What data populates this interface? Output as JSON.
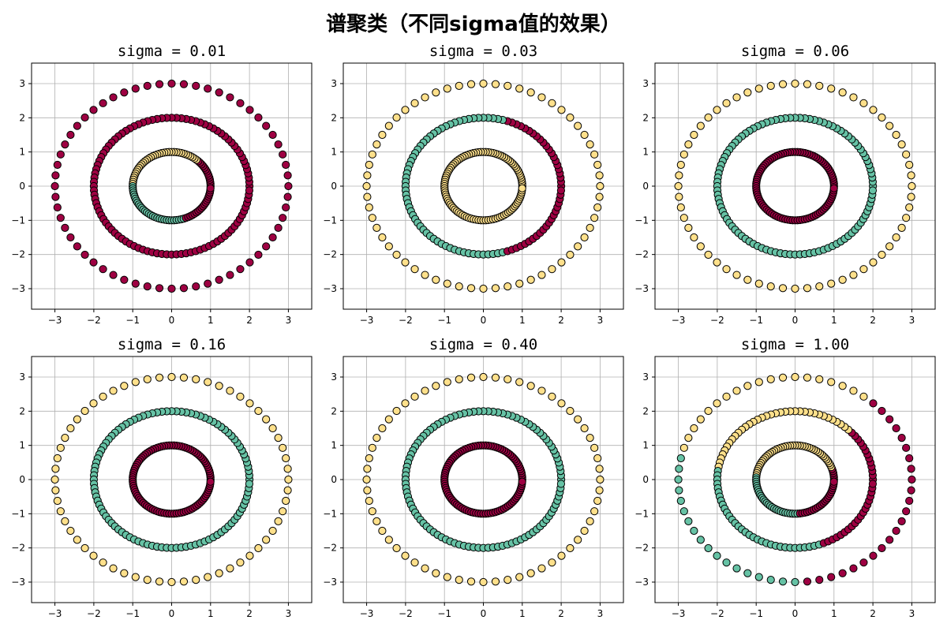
{
  "figure": {
    "suptitle": "谱聚类（不同sigma值的效果）"
  },
  "colors": {
    "cluster_a": "#9e0142",
    "cluster_b": "#66c2a5",
    "cluster_c": "#fee08b",
    "edge": "#000000",
    "grid": "#b0b0b0"
  },
  "chart_data": [
    {
      "type": "scatter",
      "title": "sigma = 0.01",
      "xlim": [
        -3.6,
        3.6
      ],
      "ylim": [
        -3.6,
        3.6
      ],
      "xticks": [
        -3,
        -2,
        -1,
        0,
        1,
        2,
        3
      ],
      "yticks": [
        -3,
        -2,
        -1,
        0,
        1,
        2,
        3
      ],
      "grid": true,
      "rings": [
        {
          "radius": 1,
          "points": 100,
          "segments": [
            {
              "from_deg": 0,
              "to_deg": 50,
              "cluster": "cluster_a"
            },
            {
              "from_deg": 50,
              "to_deg": 180,
              "cluster": "cluster_c"
            },
            {
              "from_deg": 180,
              "to_deg": 290,
              "cluster": "cluster_b"
            },
            {
              "from_deg": 290,
              "to_deg": 360,
              "cluster": "cluster_a"
            }
          ]
        },
        {
          "radius": 2,
          "points": 100,
          "segments": [
            {
              "from_deg": 0,
              "to_deg": 360,
              "cluster": "cluster_a"
            }
          ]
        },
        {
          "radius": 3,
          "points": 60,
          "segments": [
            {
              "from_deg": 0,
              "to_deg": 360,
              "cluster": "cluster_a"
            }
          ]
        }
      ]
    },
    {
      "type": "scatter",
      "title": "sigma = 0.03",
      "xlim": [
        -3.6,
        3.6
      ],
      "ylim": [
        -3.6,
        3.6
      ],
      "xticks": [
        -3,
        -2,
        -1,
        0,
        1,
        2,
        3
      ],
      "yticks": [
        -3,
        -2,
        -1,
        0,
        1,
        2,
        3
      ],
      "grid": true,
      "rings": [
        {
          "radius": 1,
          "points": 100,
          "segments": [
            {
              "from_deg": 0,
              "to_deg": 360,
              "cluster": "cluster_c"
            }
          ]
        },
        {
          "radius": 2,
          "points": 100,
          "segments": [
            {
              "from_deg": 0,
              "to_deg": 75,
              "cluster": "cluster_a"
            },
            {
              "from_deg": 75,
              "to_deg": 285,
              "cluster": "cluster_b"
            },
            {
              "from_deg": 285,
              "to_deg": 360,
              "cluster": "cluster_a"
            }
          ]
        },
        {
          "radius": 3,
          "points": 60,
          "segments": [
            {
              "from_deg": 0,
              "to_deg": 360,
              "cluster": "cluster_c"
            }
          ]
        }
      ]
    },
    {
      "type": "scatter",
      "title": "sigma = 0.06",
      "xlim": [
        -3.6,
        3.6
      ],
      "ylim": [
        -3.6,
        3.6
      ],
      "xticks": [
        -3,
        -2,
        -1,
        0,
        1,
        2,
        3
      ],
      "yticks": [
        -3,
        -2,
        -1,
        0,
        1,
        2,
        3
      ],
      "grid": true,
      "rings": [
        {
          "radius": 1,
          "points": 100,
          "segments": [
            {
              "from_deg": 0,
              "to_deg": 360,
              "cluster": "cluster_a"
            }
          ]
        },
        {
          "radius": 2,
          "points": 100,
          "segments": [
            {
              "from_deg": 0,
              "to_deg": 360,
              "cluster": "cluster_b"
            }
          ]
        },
        {
          "radius": 3,
          "points": 60,
          "segments": [
            {
              "from_deg": 0,
              "to_deg": 360,
              "cluster": "cluster_c"
            }
          ]
        }
      ]
    },
    {
      "type": "scatter",
      "title": "sigma = 0.16",
      "xlim": [
        -3.6,
        3.6
      ],
      "ylim": [
        -3.6,
        3.6
      ],
      "xticks": [
        -3,
        -2,
        -1,
        0,
        1,
        2,
        3
      ],
      "yticks": [
        -3,
        -2,
        -1,
        0,
        1,
        2,
        3
      ],
      "grid": true,
      "rings": [
        {
          "radius": 1,
          "points": 100,
          "segments": [
            {
              "from_deg": 0,
              "to_deg": 360,
              "cluster": "cluster_a"
            }
          ]
        },
        {
          "radius": 2,
          "points": 100,
          "segments": [
            {
              "from_deg": 0,
              "to_deg": 360,
              "cluster": "cluster_b"
            }
          ]
        },
        {
          "radius": 3,
          "points": 60,
          "segments": [
            {
              "from_deg": 0,
              "to_deg": 360,
              "cluster": "cluster_c"
            }
          ]
        }
      ]
    },
    {
      "type": "scatter",
      "title": "sigma = 0.40",
      "xlim": [
        -3.6,
        3.6
      ],
      "ylim": [
        -3.6,
        3.6
      ],
      "xticks": [
        -3,
        -2,
        -1,
        0,
        1,
        2,
        3
      ],
      "yticks": [
        -3,
        -2,
        -1,
        0,
        1,
        2,
        3
      ],
      "grid": true,
      "rings": [
        {
          "radius": 1,
          "points": 100,
          "segments": [
            {
              "from_deg": 0,
              "to_deg": 360,
              "cluster": "cluster_a"
            }
          ]
        },
        {
          "radius": 2,
          "points": 100,
          "segments": [
            {
              "from_deg": 0,
              "to_deg": 360,
              "cluster": "cluster_b"
            }
          ]
        },
        {
          "radius": 3,
          "points": 60,
          "segments": [
            {
              "from_deg": 0,
              "to_deg": 360,
              "cluster": "cluster_c"
            }
          ]
        }
      ]
    },
    {
      "type": "scatter",
      "title": "sigma = 1.00",
      "xlim": [
        -3.6,
        3.6
      ],
      "ylim": [
        -3.6,
        3.6
      ],
      "xticks": [
        -3,
        -2,
        -1,
        0,
        1,
        2,
        3
      ],
      "yticks": [
        -3,
        -2,
        -1,
        0,
        1,
        2,
        3
      ],
      "grid": true,
      "rings": [
        {
          "radius": 1,
          "points": 100,
          "segments": [
            {
              "from_deg": 0,
              "to_deg": 20,
              "cluster": "cluster_a"
            },
            {
              "from_deg": 20,
              "to_deg": 175,
              "cluster": "cluster_c"
            },
            {
              "from_deg": 175,
              "to_deg": 275,
              "cluster": "cluster_b"
            },
            {
              "from_deg": 275,
              "to_deg": 360,
              "cluster": "cluster_a"
            }
          ]
        },
        {
          "radius": 2,
          "points": 100,
          "segments": [
            {
              "from_deg": 0,
              "to_deg": 45,
              "cluster": "cluster_a"
            },
            {
              "from_deg": 45,
              "to_deg": 170,
              "cluster": "cluster_c"
            },
            {
              "from_deg": 170,
              "to_deg": 290,
              "cluster": "cluster_b"
            },
            {
              "from_deg": 290,
              "to_deg": 360,
              "cluster": "cluster_a"
            }
          ]
        },
        {
          "radius": 3,
          "points": 60,
          "segments": [
            {
              "from_deg": 0,
              "to_deg": 50,
              "cluster": "cluster_a"
            },
            {
              "from_deg": 50,
              "to_deg": 165,
              "cluster": "cluster_c"
            },
            {
              "from_deg": 165,
              "to_deg": 275,
              "cluster": "cluster_b"
            },
            {
              "from_deg": 275,
              "to_deg": 360,
              "cluster": "cluster_a"
            }
          ]
        }
      ]
    }
  ]
}
